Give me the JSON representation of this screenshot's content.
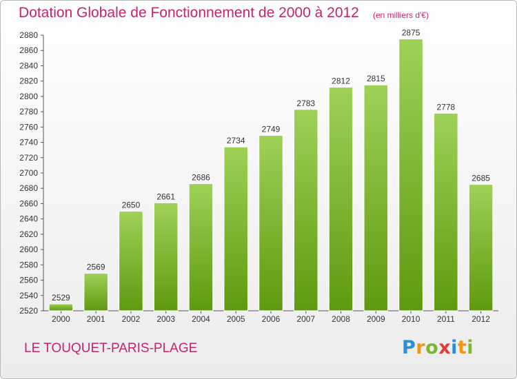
{
  "chart_data": {
    "type": "bar",
    "title": "Dotation Globale de Fonctionnement de 2000 à 2012",
    "subtitle": "(en milliers d'€)",
    "categories": [
      "2000",
      "2001",
      "2002",
      "2003",
      "2004",
      "2005",
      "2006",
      "2007",
      "2008",
      "2009",
      "2010",
      "2011",
      "2012"
    ],
    "values": [
      2529,
      2569,
      2650,
      2661,
      2686,
      2734,
      2749,
      2783,
      2812,
      2815,
      2875,
      2778,
      2685
    ],
    "ylim": [
      2520,
      2880
    ],
    "yticks": [
      2520,
      2540,
      2560,
      2580,
      2600,
      2620,
      2640,
      2660,
      2680,
      2700,
      2720,
      2740,
      2760,
      2780,
      2800,
      2820,
      2840,
      2860,
      2880
    ],
    "xlabel": "",
    "ylabel": "",
    "grid": false,
    "colors": {
      "bar_top": "#9fd157",
      "bar_bottom": "#5e9a0f",
      "title": "#c3256b"
    }
  },
  "commune_name": "LE TOUQUET-PARIS-PLAGE",
  "logo": {
    "letters": [
      "P",
      "r",
      "o",
      "x",
      "i",
      "t",
      "i"
    ],
    "colors": [
      "#2a8fd6",
      "#f29312",
      "#7cb82f",
      "#e23b3b",
      "#2a8fd6",
      "#f29312",
      "#7cb82f"
    ]
  }
}
